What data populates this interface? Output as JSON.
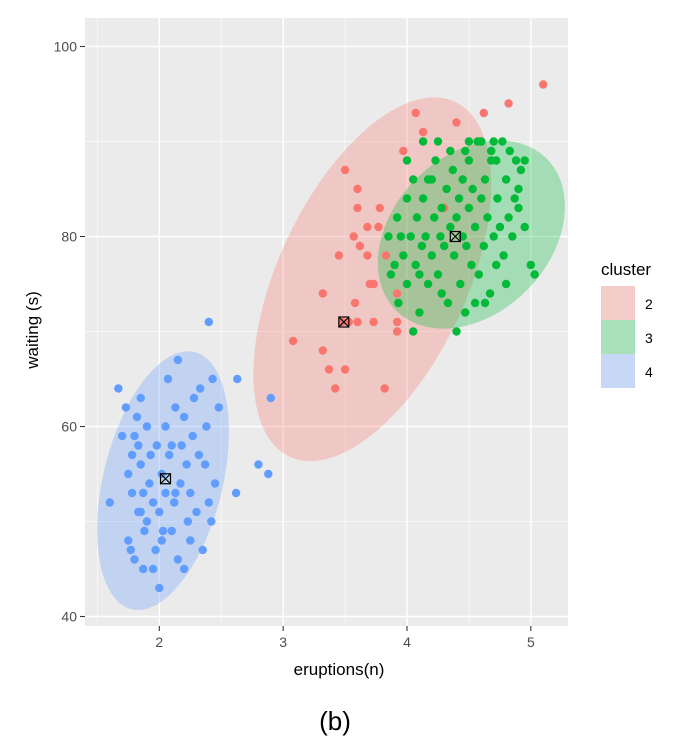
{
  "caption": "(b)",
  "chart_data": {
    "type": "scatter",
    "xlabel": "eruptions(n)",
    "ylabel": "waiting (s)",
    "xlim": [
      1.4,
      5.3
    ],
    "ylim": [
      39,
      103
    ],
    "x_ticks": [
      2,
      3,
      4,
      5
    ],
    "y_ticks": [
      40,
      60,
      80,
      100
    ],
    "x_tick_labels": [
      "2",
      "3",
      "4",
      "5"
    ],
    "y_tick_labels": [
      "40",
      "60",
      "80",
      "100"
    ],
    "grid": true,
    "legend": {
      "title": "cluster",
      "position": "right"
    },
    "series": [
      {
        "name": "2",
        "color": "#F8766D",
        "fill": "#F8766D",
        "centroid": [
          3.49,
          71
        ],
        "ellipse": {
          "center": [
            3.72,
            75.5
          ],
          "semi_major": [
            0.6,
            19
          ],
          "semi_minor": [
            0.75,
            -2.4
          ]
        },
        "points": [
          [
            3.08,
            69
          ],
          [
            3.32,
            74
          ],
          [
            3.32,
            68
          ],
          [
            3.37,
            66
          ],
          [
            3.42,
            64
          ],
          [
            3.45,
            78
          ],
          [
            3.5,
            66
          ],
          [
            3.5,
            87
          ],
          [
            3.53,
            71
          ],
          [
            3.58,
            73
          ],
          [
            3.6,
            71
          ],
          [
            3.62,
            79
          ],
          [
            3.6,
            85
          ],
          [
            3.6,
            83
          ],
          [
            3.68,
            81
          ],
          [
            3.73,
            71
          ],
          [
            3.73,
            75
          ],
          [
            3.77,
            81
          ],
          [
            3.78,
            83
          ],
          [
            3.82,
            64
          ],
          [
            3.83,
            78
          ],
          [
            3.92,
            70
          ],
          [
            3.92,
            71
          ],
          [
            3.92,
            74
          ],
          [
            3.97,
            89
          ],
          [
            4.07,
            93
          ],
          [
            4.13,
            91
          ],
          [
            4.3,
            83
          ],
          [
            4.4,
            92
          ],
          [
            4.62,
            93
          ],
          [
            4.82,
            94
          ],
          [
            5.1,
            96
          ],
          [
            3.48,
            71
          ],
          [
            3.7,
            75
          ],
          [
            3.68,
            78
          ],
          [
            3.57,
            80
          ]
        ]
      },
      {
        "name": "3",
        "color": "#00BA38",
        "fill": "#00BA38",
        "centroid": [
          4.39,
          80
        ],
        "ellipse": {
          "center": [
            4.52,
            80.2
          ],
          "semi_major": [
            0.46,
            9.3
          ],
          "semi_minor": [
            0.6,
            -3.4
          ]
        },
        "points": [
          [
            3.85,
            80
          ],
          [
            3.87,
            76
          ],
          [
            3.9,
            77
          ],
          [
            3.92,
            82
          ],
          [
            3.95,
            80
          ],
          [
            3.97,
            78
          ],
          [
            4.0,
            75
          ],
          [
            4.0,
            84
          ],
          [
            4.03,
            80
          ],
          [
            4.05,
            86
          ],
          [
            4.07,
            77
          ],
          [
            4.08,
            82
          ],
          [
            4.1,
            76
          ],
          [
            4.12,
            79
          ],
          [
            4.13,
            84
          ],
          [
            4.15,
            80
          ],
          [
            4.17,
            86
          ],
          [
            4.17,
            75
          ],
          [
            4.2,
            78
          ],
          [
            4.22,
            82
          ],
          [
            4.23,
            88
          ],
          [
            4.25,
            76
          ],
          [
            4.27,
            80
          ],
          [
            4.28,
            83
          ],
          [
            4.3,
            79
          ],
          [
            4.32,
            85
          ],
          [
            4.33,
            73
          ],
          [
            4.35,
            81
          ],
          [
            4.37,
            87
          ],
          [
            4.38,
            78
          ],
          [
            4.4,
            82
          ],
          [
            4.42,
            84
          ],
          [
            4.43,
            75
          ],
          [
            4.45,
            80
          ],
          [
            4.47,
            89
          ],
          [
            4.48,
            79
          ],
          [
            4.5,
            83
          ],
          [
            4.52,
            77
          ],
          [
            4.53,
            85
          ],
          [
            4.55,
            81
          ],
          [
            4.57,
            90
          ],
          [
            4.58,
            76
          ],
          [
            4.6,
            84
          ],
          [
            4.62,
            79
          ],
          [
            4.63,
            86
          ],
          [
            4.65,
            82
          ],
          [
            4.67,
            74
          ],
          [
            4.68,
            88
          ],
          [
            4.7,
            80
          ],
          [
            4.7,
            90
          ],
          [
            4.72,
            77
          ],
          [
            4.73,
            84
          ],
          [
            4.75,
            81
          ],
          [
            4.77,
            90
          ],
          [
            4.78,
            78
          ],
          [
            4.8,
            86
          ],
          [
            4.82,
            82
          ],
          [
            4.83,
            89
          ],
          [
            4.85,
            80
          ],
          [
            4.87,
            84
          ],
          [
            4.88,
            88
          ],
          [
            4.9,
            83
          ],
          [
            4.92,
            87
          ],
          [
            4.95,
            81
          ],
          [
            5.0,
            77
          ],
          [
            5.03,
            76
          ],
          [
            4.28,
            74
          ],
          [
            4.4,
            70
          ],
          [
            4.47,
            72
          ],
          [
            4.55,
            73
          ],
          [
            4.63,
            73
          ],
          [
            4.1,
            72
          ],
          [
            4.05,
            70
          ],
          [
            3.93,
            73
          ],
          [
            4.0,
            88
          ],
          [
            4.13,
            90
          ],
          [
            4.25,
            90
          ],
          [
            4.5,
            90
          ],
          [
            4.6,
            90
          ],
          [
            4.68,
            89
          ],
          [
            4.5,
            88
          ],
          [
            4.35,
            89
          ],
          [
            4.2,
            86
          ],
          [
            4.45,
            86
          ],
          [
            4.72,
            88
          ],
          [
            4.8,
            75
          ],
          [
            4.9,
            85
          ],
          [
            4.95,
            88
          ]
        ]
      },
      {
        "name": "4",
        "color": "#619CFF",
        "fill": "#619CFF",
        "centroid": [
          2.05,
          54.5
        ],
        "ellipse": {
          "center": [
            2.03,
            54.3
          ],
          "semi_major": [
            0.23,
            13.6
          ],
          "semi_minor": [
            0.48,
            -0.8
          ]
        },
        "points": [
          [
            1.6,
            52
          ],
          [
            1.67,
            64
          ],
          [
            1.7,
            59
          ],
          [
            1.73,
            62
          ],
          [
            1.75,
            55
          ],
          [
            1.75,
            48
          ],
          [
            1.77,
            47
          ],
          [
            1.78,
            53
          ],
          [
            1.8,
            46
          ],
          [
            1.8,
            59
          ],
          [
            1.82,
            61
          ],
          [
            1.83,
            51
          ],
          [
            1.83,
            58
          ],
          [
            1.85,
            63
          ],
          [
            1.85,
            56
          ],
          [
            1.87,
            45
          ],
          [
            1.87,
            53
          ],
          [
            1.88,
            49
          ],
          [
            1.9,
            60
          ],
          [
            1.9,
            50
          ],
          [
            1.92,
            54
          ],
          [
            1.93,
            57
          ],
          [
            1.95,
            45
          ],
          [
            1.95,
            52
          ],
          [
            1.97,
            47
          ],
          [
            1.98,
            58
          ],
          [
            2.0,
            43
          ],
          [
            2.0,
            51
          ],
          [
            2.02,
            55
          ],
          [
            2.03,
            49
          ],
          [
            2.05,
            60
          ],
          [
            2.05,
            53
          ],
          [
            2.07,
            65
          ],
          [
            2.08,
            57
          ],
          [
            2.1,
            49
          ],
          [
            2.12,
            52
          ],
          [
            2.13,
            62
          ],
          [
            2.15,
            67
          ],
          [
            2.15,
            46
          ],
          [
            2.17,
            54
          ],
          [
            2.18,
            58
          ],
          [
            2.2,
            45
          ],
          [
            2.2,
            61
          ],
          [
            2.22,
            56
          ],
          [
            2.23,
            50
          ],
          [
            2.25,
            53
          ],
          [
            2.27,
            59
          ],
          [
            2.28,
            63
          ],
          [
            2.3,
            51
          ],
          [
            2.32,
            57
          ],
          [
            2.33,
            64
          ],
          [
            2.35,
            47
          ],
          [
            2.37,
            56
          ],
          [
            2.38,
            60
          ],
          [
            2.4,
            52
          ],
          [
            2.42,
            50
          ],
          [
            2.43,
            65
          ],
          [
            2.45,
            54
          ],
          [
            2.48,
            62
          ],
          [
            2.4,
            71
          ],
          [
            2.63,
            65
          ],
          [
            2.62,
            53
          ],
          [
            2.8,
            56
          ],
          [
            2.88,
            55
          ],
          [
            2.9,
            63
          ],
          [
            1.78,
            57
          ],
          [
            1.85,
            51
          ],
          [
            2.02,
            48
          ],
          [
            2.1,
            58
          ],
          [
            2.25,
            48
          ],
          [
            2.13,
            53
          ]
        ]
      }
    ]
  }
}
